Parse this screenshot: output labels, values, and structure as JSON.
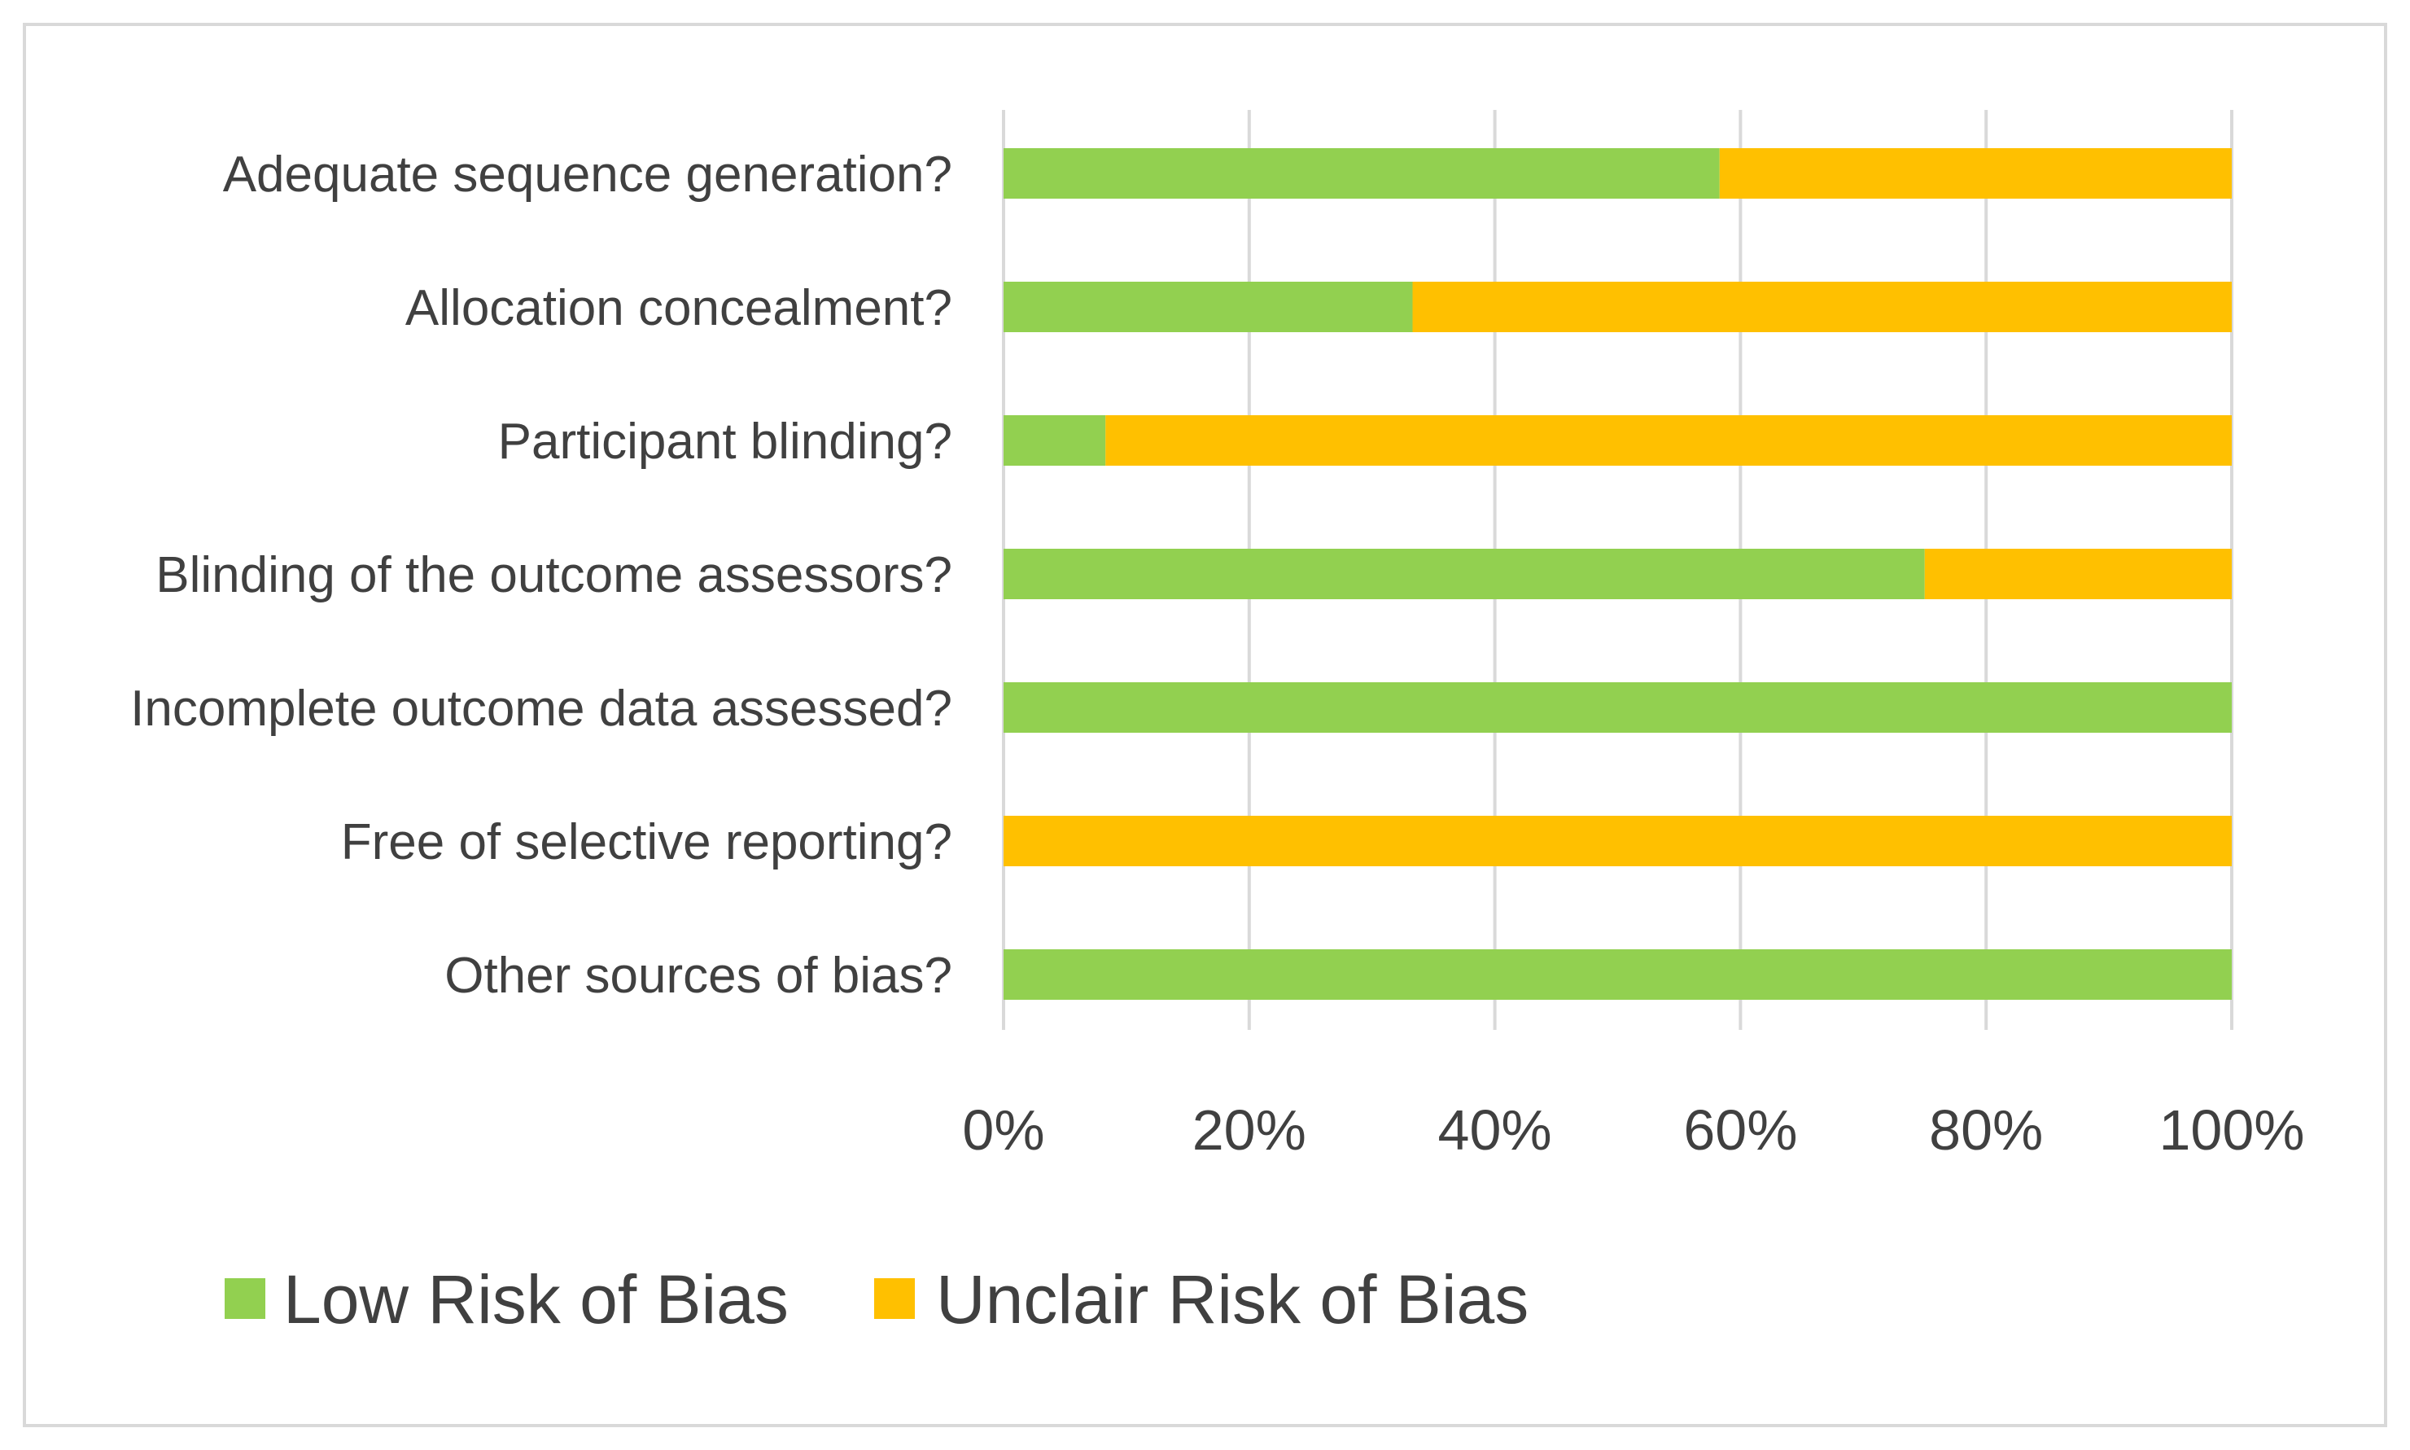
{
  "chart_data": {
    "type": "bar",
    "orientation": "horizontal",
    "stacked": true,
    "percent_stacked": true,
    "title": "",
    "xlabel": "",
    "ylabel": "",
    "xlim": [
      0,
      100
    ],
    "grid": true,
    "legend_position": "bottom",
    "categories": [
      "Adequate sequence generation?",
      "Allocation concealment?",
      "Participant blinding?",
      "Blinding of the outcome assessors?",
      "Incomplete outcome data assessed?",
      "Free of selective reporting?",
      "Other sources of bias?"
    ],
    "series": [
      {
        "name": "Low Risk of Bias",
        "color": "#92d050",
        "values": [
          58.3,
          33.3,
          8.3,
          75,
          100,
          0,
          100
        ]
      },
      {
        "name": "Unclair Risk of Bias",
        "color": "#ffc000",
        "values": [
          41.7,
          66.7,
          91.7,
          25,
          0,
          100,
          0
        ]
      }
    ],
    "x_ticks": [
      "0%",
      "20%",
      "40%",
      "60%",
      "80%",
      "100%"
    ],
    "x_tick_values": [
      0,
      20,
      40,
      60,
      80,
      100
    ]
  }
}
